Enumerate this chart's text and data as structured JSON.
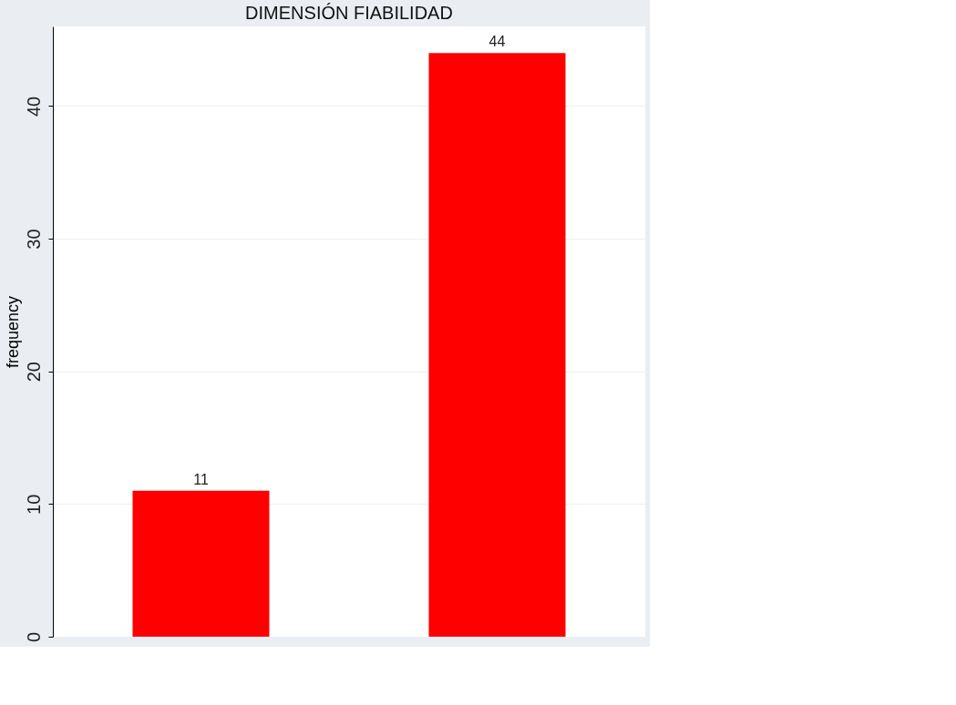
{
  "chart_data": {
    "type": "bar",
    "title": "DIMENSIÓN FIABILIDAD",
    "ylabel": "frequency",
    "categories": [
      null,
      null
    ],
    "values": [
      11,
      44
    ],
    "color": "#ff0000",
    "ylim": [
      0,
      46
    ],
    "yticks": [
      0,
      10,
      20,
      30,
      40
    ],
    "grid": "y",
    "data_labels": true,
    "tick_labels": "y"
  }
}
